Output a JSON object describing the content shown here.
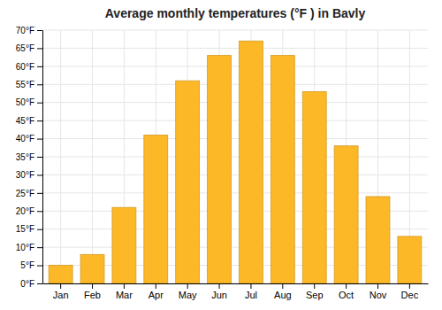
{
  "chart_data": {
    "type": "bar",
    "title": "Average monthly temperatures (°F ) in Bavly",
    "categories": [
      "Jan",
      "Feb",
      "Mar",
      "Apr",
      "May",
      "Jun",
      "Jul",
      "Aug",
      "Sep",
      "Oct",
      "Nov",
      "Dec"
    ],
    "values": [
      5,
      8,
      21,
      41,
      56,
      63,
      67,
      63,
      53,
      38,
      24,
      13
    ],
    "color": "#FDB827",
    "ylim": [
      0,
      70
    ],
    "yticks": [
      {
        "value": 0,
        "label": "0°F"
      },
      {
        "value": 5,
        "label": "5°F"
      },
      {
        "value": 10,
        "label": "10°F"
      },
      {
        "value": 15,
        "label": "15°F"
      },
      {
        "value": 20,
        "label": "20°F"
      },
      {
        "value": 25,
        "label": "25°F"
      },
      {
        "value": 30,
        "label": "30°F"
      },
      {
        "value": 35,
        "label": "35°F"
      },
      {
        "value": 40,
        "label": "40°F"
      },
      {
        "value": 45,
        "label": "45°F"
      },
      {
        "value": 50,
        "label": "50°F"
      },
      {
        "value": 55,
        "label": "55°F"
      },
      {
        "value": 60,
        "label": "60°F"
      },
      {
        "value": 65,
        "label": "65°F"
      },
      {
        "value": 70,
        "label": "70°F"
      }
    ],
    "grid": true
  }
}
